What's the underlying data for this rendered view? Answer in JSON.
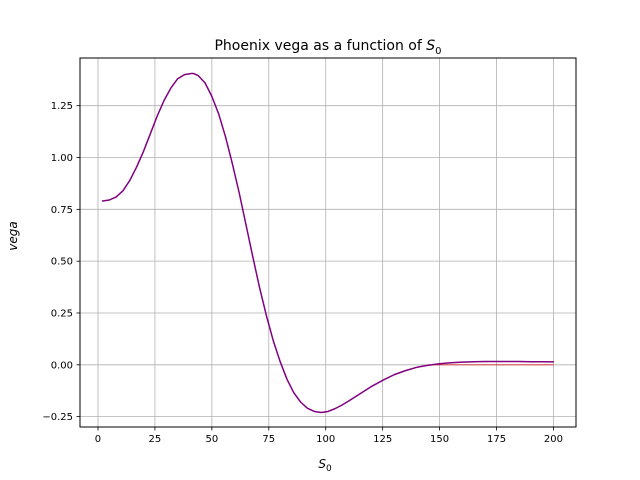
{
  "chart_data": {
    "type": "line",
    "title_main": "Phoenix vega as a function of ",
    "title_symbol": "S",
    "title_sub": "0",
    "xlabel_symbol": "S",
    "xlabel_sub": "0",
    "ylabel": "vega",
    "xlim": [
      -7.9,
      209.9
    ],
    "ylim": [
      -0.3,
      1.48
    ],
    "xticks": [
      0,
      25,
      50,
      75,
      100,
      125,
      150,
      175,
      200
    ],
    "yticks": [
      -0.25,
      0.0,
      0.25,
      0.5,
      0.75,
      1.0,
      1.25
    ],
    "xtick_labels": [
      "0",
      "25",
      "50",
      "75",
      "100",
      "125",
      "150",
      "175",
      "200"
    ],
    "ytick_labels": [
      "−0.25",
      "0.00",
      "0.25",
      "0.50",
      "0.75",
      "1.00",
      "1.25"
    ],
    "grid": true,
    "series": [
      {
        "name": "baseline",
        "color": "#d62728",
        "x": [
          145,
          200
        ],
        "y": [
          0,
          0
        ]
      },
      {
        "name": "vega",
        "color": "#800080",
        "x": [
          2,
          5,
          8,
          11,
          14,
          17,
          20,
          23,
          26,
          29,
          32,
          35,
          38,
          41,
          42,
          44,
          47,
          50,
          53,
          56,
          59,
          62,
          65,
          68,
          71,
          74,
          77,
          80,
          83,
          86,
          89,
          92,
          95,
          98,
          101,
          104,
          107,
          110,
          115,
          120,
          125,
          130,
          135,
          140,
          145,
          150,
          155,
          160,
          165,
          170,
          175,
          180,
          185,
          190,
          195,
          200
        ],
        "y": [
          0.79,
          0.795,
          0.81,
          0.84,
          0.89,
          0.955,
          1.03,
          1.115,
          1.2,
          1.275,
          1.335,
          1.38,
          1.4,
          1.405,
          1.405,
          1.395,
          1.36,
          1.295,
          1.21,
          1.1,
          0.97,
          0.83,
          0.675,
          0.52,
          0.37,
          0.235,
          0.115,
          0.015,
          -0.07,
          -0.135,
          -0.18,
          -0.21,
          -0.225,
          -0.23,
          -0.225,
          -0.212,
          -0.195,
          -0.175,
          -0.14,
          -0.105,
          -0.075,
          -0.048,
          -0.028,
          -0.012,
          -0.002,
          0.005,
          0.01,
          0.013,
          0.015,
          0.016,
          0.016,
          0.016,
          0.016,
          0.015,
          0.015,
          0.014
        ]
      }
    ]
  }
}
